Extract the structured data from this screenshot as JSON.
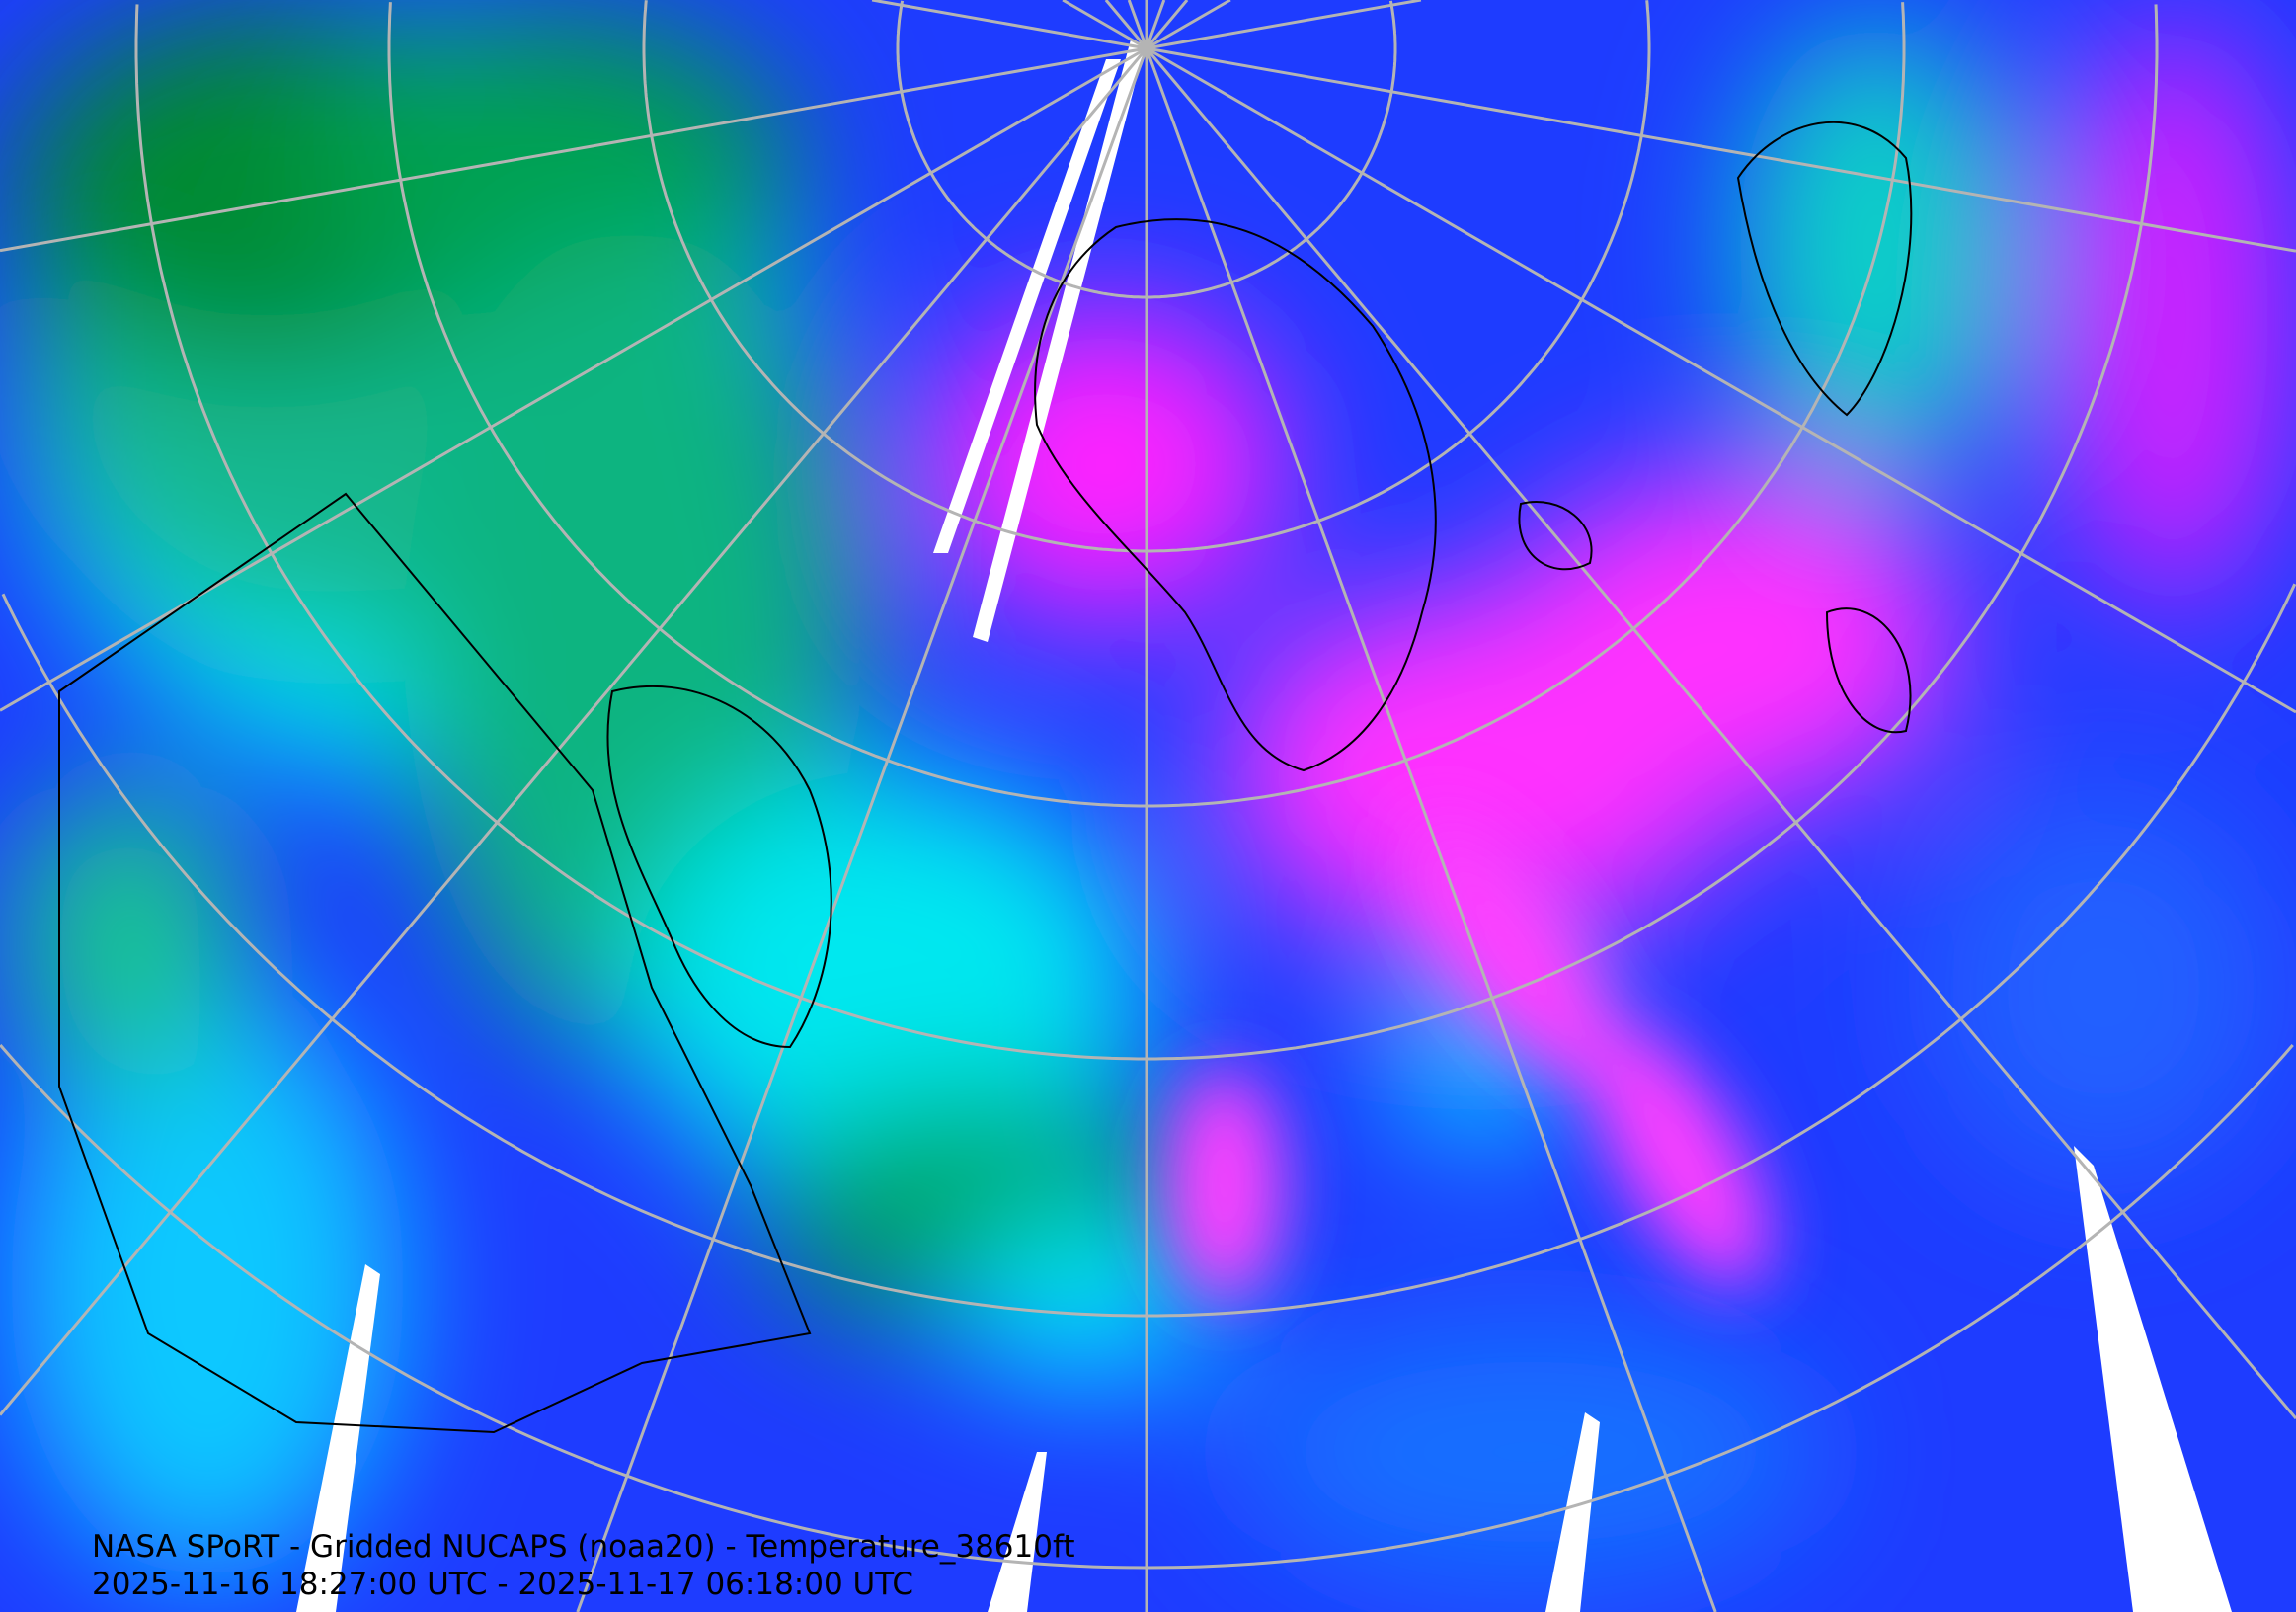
{
  "map": {
    "title": "NASA SPoRT - Gridded NUCAPS (noaa20) - Temperature_38610ft",
    "time_range": "2025-11-16 18:27:00 UTC - 2025-11-17 06:18:00 UTC",
    "projection": "north polar stereographic",
    "colors": {
      "base_blue": "#1e3cff",
      "cyan": "#00f0ff",
      "green": "#009a3c",
      "magenta": "#ff30ff",
      "purple": "#8a10ff",
      "no_data": "#ffffff",
      "graticule": "#b4b4b4",
      "coastlines": "#000000"
    }
  }
}
